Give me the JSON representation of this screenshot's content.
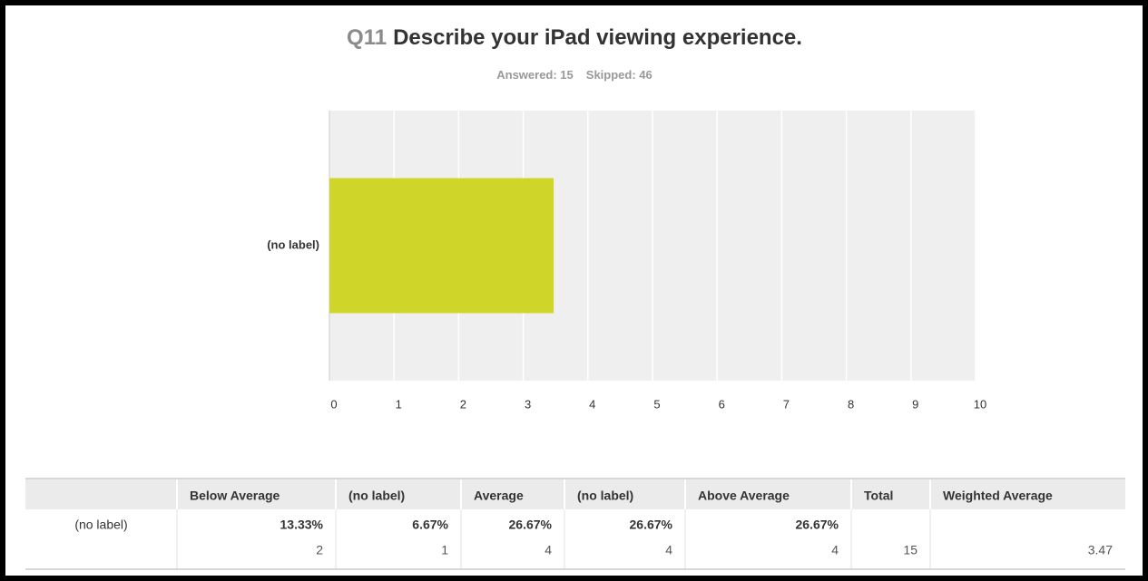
{
  "title_number": "Q11",
  "chart_data": {
    "type": "bar",
    "orientation": "horizontal",
    "title": "Describe your iPad viewing experience.",
    "answered": "Answered: 15",
    "skipped": "Skipped: 46",
    "categories": [
      "(no label)"
    ],
    "values": [
      3.47
    ],
    "color": "#d0d52a",
    "xlim": [
      0,
      10
    ],
    "xticks": [
      0,
      1,
      2,
      3,
      4,
      5,
      6,
      7,
      8,
      9,
      10
    ],
    "grid": true
  },
  "table": {
    "columns": [
      "Below Average",
      "(no label)",
      "Average",
      "(no label)",
      "Above Average",
      "Total",
      "Weighted Average"
    ],
    "rows": [
      {
        "label": "(no label)",
        "percents": [
          "13.33%",
          "6.67%",
          "26.67%",
          "26.67%",
          "26.67%"
        ],
        "counts": [
          2,
          1,
          4,
          4,
          4
        ],
        "total": 15,
        "weighted_average": 3.47
      }
    ]
  }
}
